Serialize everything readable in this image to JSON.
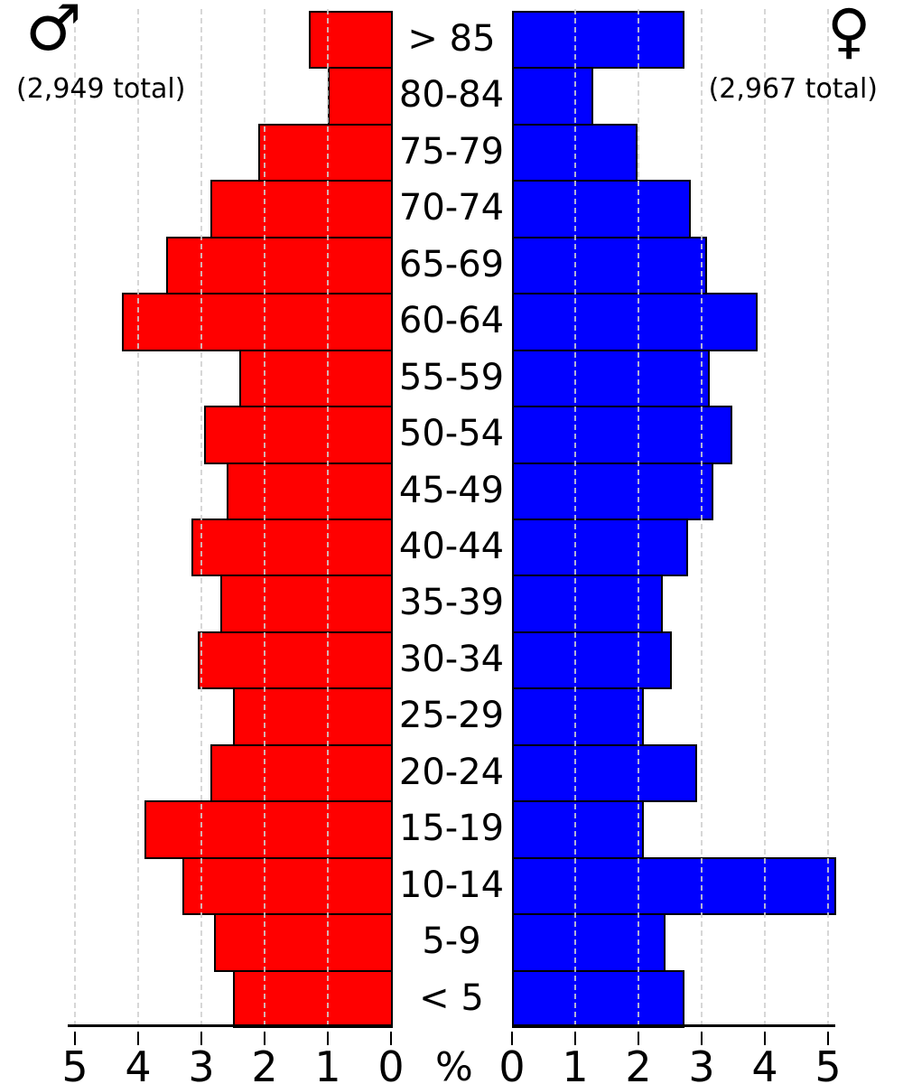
{
  "header": {
    "male_symbol": "♂",
    "male_total": "(2,949 total)",
    "female_symbol": "♀",
    "female_total": "(2,967 total)"
  },
  "axis": {
    "left_ticks": [
      "5",
      "4",
      "3",
      "2",
      "1",
      "0"
    ],
    "right_ticks": [
      "0",
      "1",
      "2",
      "3",
      "4",
      "5"
    ],
    "unit_label": "%"
  },
  "colors": {
    "male_bar": "#ff0000",
    "female_bar": "#0000ff",
    "bar_outline": "#000000",
    "gridline": "#d0d0d0",
    "axis": "#000000"
  },
  "chart_data": {
    "type": "bar",
    "subtype": "population-pyramid",
    "orientation": "horizontal",
    "categories": [
      "> 85",
      "80-84",
      "75-79",
      "70-74",
      "65-69",
      "60-64",
      "55-59",
      "50-54",
      "45-49",
      "40-44",
      "35-39",
      "30-34",
      "25-29",
      "20-24",
      "15-19",
      "10-14",
      "5-9",
      "< 5"
    ],
    "series": [
      {
        "name": "male",
        "total": 2949,
        "side": "left",
        "values": [
          1.3,
          1.0,
          2.1,
          2.85,
          3.55,
          4.25,
          2.4,
          2.95,
          2.6,
          3.15,
          2.7,
          3.05,
          2.5,
          2.85,
          3.9,
          3.3,
          2.8,
          2.5
        ]
      },
      {
        "name": "female",
        "total": 2967,
        "side": "right",
        "values": [
          2.7,
          1.25,
          1.95,
          2.8,
          3.05,
          3.85,
          3.1,
          3.45,
          3.15,
          2.75,
          2.35,
          2.5,
          2.05,
          2.9,
          2.05,
          5.1,
          2.4,
          2.7
        ]
      }
    ],
    "xlabel": "%",
    "xlim": [
      0,
      5
    ],
    "x_tick_step": 1,
    "grid": true,
    "title": ""
  }
}
